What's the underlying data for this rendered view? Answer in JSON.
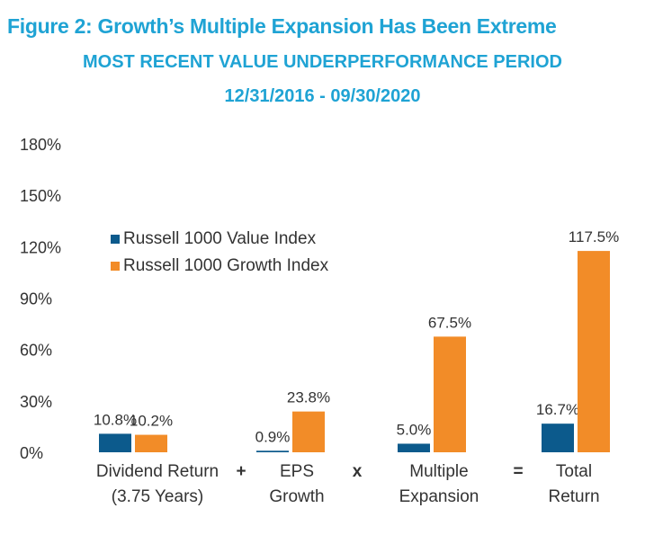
{
  "chart_data": {
    "type": "bar",
    "title": "Figure 2: Growth’s Multiple Expansion Has Been Extreme",
    "subtitle": "MOST RECENT VALUE UNDERPERFORMANCE PERIOD",
    "date_range": "12/31/2016 - 09/30/2020",
    "categories": [
      {
        "line1": "Dividend Return",
        "line2": "(3.75 Years)"
      },
      {
        "line1": "EPS",
        "line2": "Growth"
      },
      {
        "line1": "Multiple",
        "line2": "Expansion"
      },
      {
        "line1": "Total",
        "line2": "Return"
      }
    ],
    "operators": [
      "+",
      "x",
      "="
    ],
    "series": [
      {
        "name": "Russell 1000 Value Index",
        "color": "#0c5a8c",
        "values": [
          10.8,
          0.9,
          5.0,
          16.7
        ],
        "labels": [
          "10.8%",
          "0.9%",
          "5.0%",
          "16.7%"
        ]
      },
      {
        "name": "Russell 1000 Growth Index",
        "color": "#f28c28",
        "values": [
          10.2,
          23.8,
          67.5,
          117.5
        ],
        "labels": [
          "10.2%",
          "23.8%",
          "67.5%",
          "117.5%"
        ]
      }
    ],
    "yticks": [
      "0%",
      "30%",
      "60%",
      "90%",
      "120%",
      "150%",
      "180%"
    ],
    "ylim": [
      0,
      180
    ],
    "grid": false,
    "legend_position": "upper-left"
  }
}
